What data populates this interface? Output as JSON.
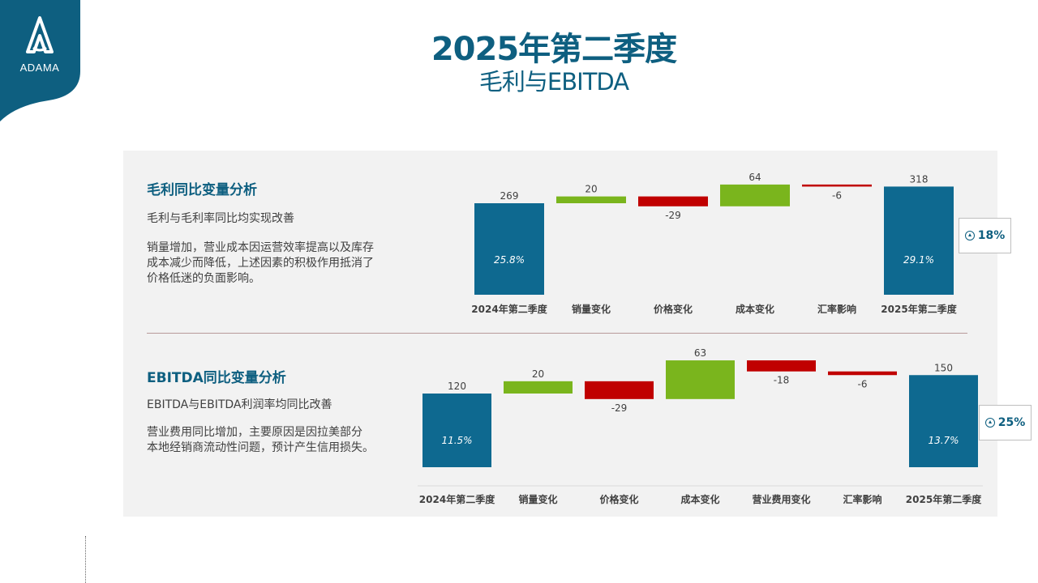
{
  "brand": {
    "logo_text": "ADAMA",
    "color": "#0e5f80"
  },
  "header": {
    "title": "2025年第二季度",
    "subtitle": "毛利与EBITDA"
  },
  "colors": {
    "total": "#0e6990",
    "increase": "#7ab51d",
    "decrease": "#c00000"
  },
  "section1": {
    "title": "毛利同比变量分析",
    "subtitle": "毛利与毛利率同比均实现改善",
    "description": [
      "销量增加，营业成本因运营效率提高以及库存",
      "成本减少而降低，上述因素的积极作用抵消了",
      "价格低迷的负面影响。"
    ],
    "change_pct": "18%"
  },
  "section2": {
    "title": "EBITDA同比变量分析",
    "subtitle": "EBITDA与EBITDA利润率均同比改善",
    "description": [
      "营业费用同比增加，主要原因是因拉美部分",
      "本地经销商流动性问题，预计产生信用损失。"
    ],
    "change_pct": "25%"
  },
  "chart_data": [
    {
      "type": "bar",
      "subtype": "waterfall",
      "categories": [
        "2024年第二季度",
        "销量变化",
        "价格变化",
        "成本变化",
        "汇率影响",
        "2025年第二季度"
      ],
      "values": [
        269,
        20,
        -29,
        64,
        -6,
        318
      ],
      "kinds": [
        "total",
        "delta",
        "delta",
        "delta",
        "delta",
        "total"
      ],
      "value_labels": [
        "269",
        "20",
        "-29",
        "64",
        "-6",
        "318"
      ],
      "inner_labels": [
        "25.8%",
        "",
        "",
        "",
        "",
        "29.1%"
      ]
    },
    {
      "type": "bar",
      "subtype": "waterfall",
      "categories": [
        "2024年第二季度",
        "销量变化",
        "价格变化",
        "成本变化",
        "营业费用变化",
        "汇率影响",
        "2025年第二季度"
      ],
      "values": [
        120,
        20,
        -29,
        63,
        -18,
        -6,
        150
      ],
      "kinds": [
        "total",
        "delta",
        "delta",
        "delta",
        "delta",
        "delta",
        "total"
      ],
      "value_labels": [
        "120",
        "20",
        "-29",
        "63",
        "-18",
        "-6",
        "150"
      ],
      "inner_labels": [
        "11.5%",
        "",
        "",
        "",
        "",
        "",
        "13.7%"
      ]
    }
  ]
}
